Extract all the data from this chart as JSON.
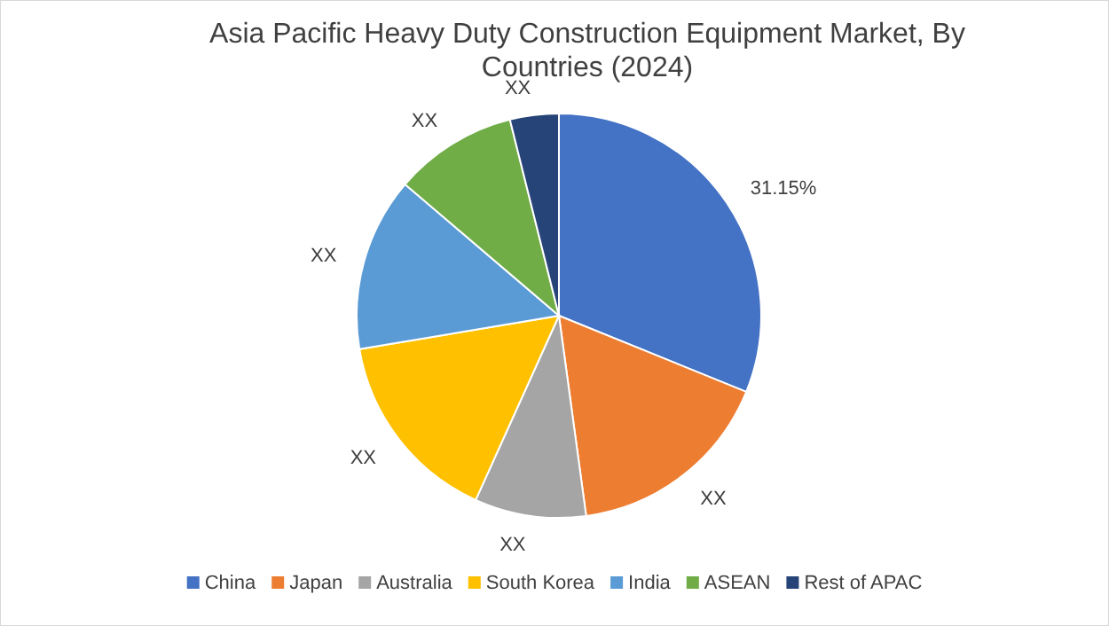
{
  "chart_data": {
    "type": "pie",
    "title": "Asia Pacific Heavy Duty Construction Equipment Market, By Countries (2024)",
    "categories": [
      "China",
      "Japan",
      "Australia",
      "South Korea",
      "India",
      "ASEAN",
      "Rest of APAC"
    ],
    "values": [
      31.15,
      16.7,
      8.9,
      15.6,
      13.9,
      9.85,
      3.9
    ],
    "colors": [
      "#4472c4",
      "#ed7d31",
      "#a5a5a5",
      "#ffc000",
      "#5b9bd5",
      "#70ad47",
      "#264478"
    ],
    "value_labels": [
      "31.15%",
      "XX",
      "XX",
      "XX",
      "XX",
      "XX",
      "XX"
    ],
    "legend": "bottom"
  }
}
